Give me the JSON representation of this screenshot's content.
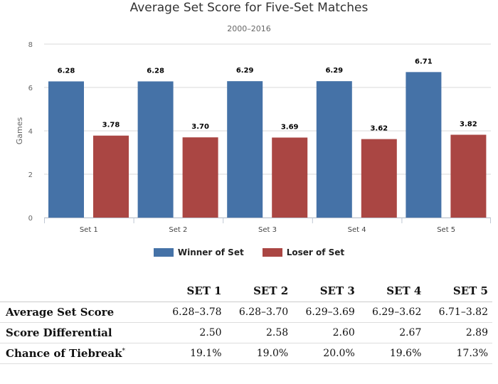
{
  "chart_data": {
    "type": "bar",
    "title": "Average Set Score for Five-Set Matches",
    "subtitle": "2000–2016",
    "ylabel": "Games",
    "ylim": [
      0,
      8
    ],
    "yticks": [
      0,
      2,
      4,
      6,
      8
    ],
    "categories": [
      "Set 1",
      "Set 2",
      "Set 3",
      "Set 4",
      "Set 5"
    ],
    "series": [
      {
        "name": "Winner of Set",
        "color": "#4572a7",
        "values": [
          6.28,
          6.28,
          6.29,
          6.29,
          6.71
        ],
        "labels": [
          "6.28",
          "6.28",
          "6.29",
          "6.29",
          "6.71"
        ]
      },
      {
        "name": "Loser of Set",
        "color": "#aa4643",
        "values": [
          3.78,
          3.7,
          3.69,
          3.62,
          3.82
        ],
        "labels": [
          "3.78",
          "3.70",
          "3.69",
          "3.62",
          "3.82"
        ]
      }
    ]
  },
  "legend": [
    {
      "label": "Winner of Set",
      "color": "#4572a7"
    },
    {
      "label": "Loser of Set",
      "color": "#aa4643"
    }
  ],
  "table": {
    "headers": [
      "SET 1",
      "SET 2",
      "SET 3",
      "SET 4",
      "SET 5"
    ],
    "rows": [
      {
        "label": "Average Set Score",
        "note": "",
        "cells": [
          "6.28–3.78",
          "6.28–3.70",
          "6.29–3.69",
          "6.29–3.62",
          "6.71–3.82"
        ]
      },
      {
        "label": "Score Differential",
        "note": "",
        "cells": [
          "2.50",
          "2.58",
          "2.60",
          "2.67",
          "2.89"
        ]
      },
      {
        "label": "Chance of Tiebreak",
        "note": "*",
        "cells": [
          "19.1%",
          "19.0%",
          "20.0%",
          "19.6%",
          "17.3%"
        ]
      }
    ]
  }
}
